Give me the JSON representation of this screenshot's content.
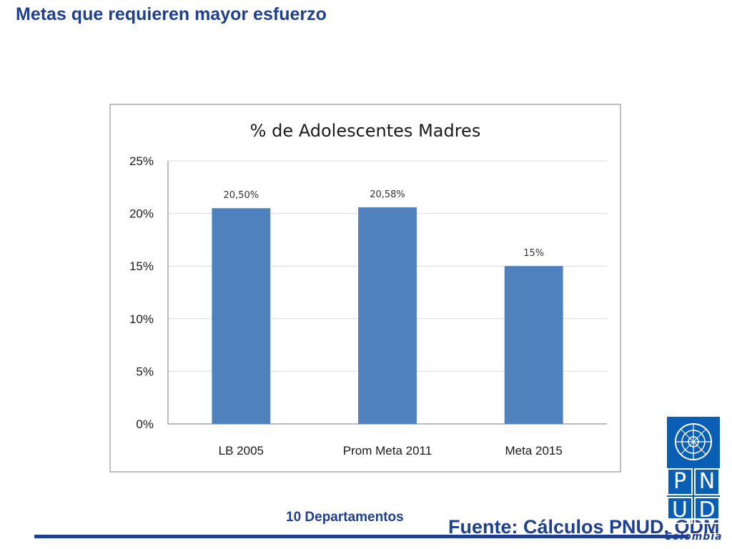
{
  "slide": {
    "title": "Metas que requieren mayor esfuerzo",
    "subtitle": "10 Departamentos",
    "source": "Fuente: Cálculos PNUD. ODM"
  },
  "logo": {
    "letters": [
      "P",
      "N",
      "U",
      "D"
    ],
    "country": "Colombia",
    "color": "#0a5fb4"
  },
  "chart_data": {
    "type": "bar",
    "title": "% de Adolescentes  Madres",
    "categories": [
      "LB 2005",
      "Prom Meta 2011",
      "Meta 2015"
    ],
    "values": [
      20.5,
      20.58,
      15
    ],
    "data_labels": [
      "20,50%",
      "20,58%",
      "15%"
    ],
    "ylim": [
      0,
      25
    ],
    "yticks": [
      0,
      5,
      10,
      15,
      20,
      25
    ],
    "ytick_labels": [
      "0%",
      "5%",
      "10%",
      "15%",
      "20%",
      "25%"
    ],
    "xlabel": "",
    "ylabel": "",
    "grid": true,
    "legend": false,
    "bar_color": "#4f81bd",
    "grid_color": "#d9d9d9"
  }
}
